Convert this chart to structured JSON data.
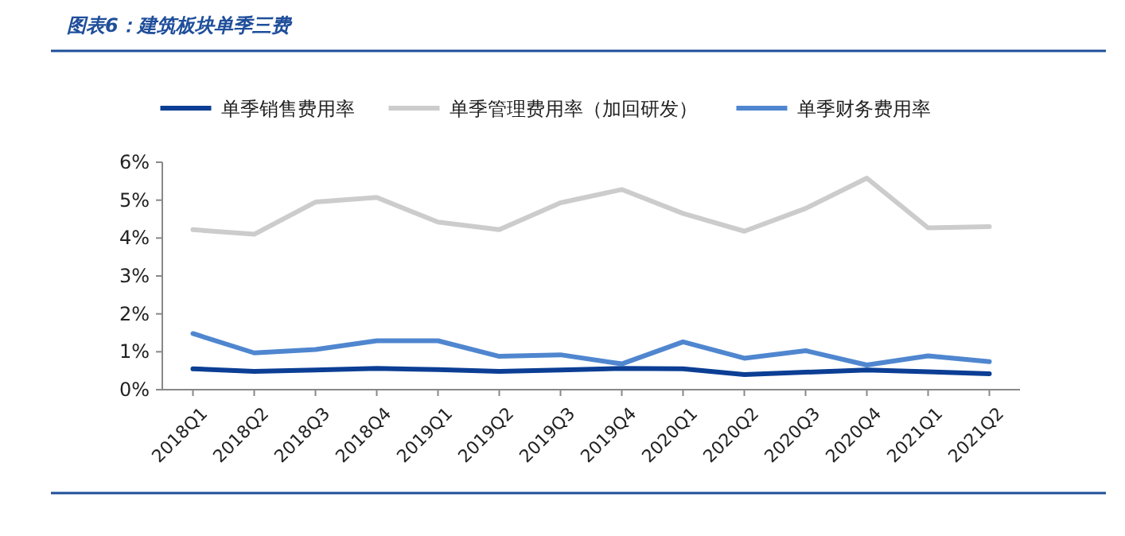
{
  "chart_data": {
    "type": "line",
    "title": "图表6：建筑板块单季三费",
    "categories": [
      "2018Q1",
      "2018Q2",
      "2018Q3",
      "2018Q4",
      "2019Q1",
      "2019Q2",
      "2019Q3",
      "2019Q4",
      "2020Q1",
      "2020Q2",
      "2020Q3",
      "2020Q4",
      "2021Q1",
      "2021Q2"
    ],
    "series": [
      {
        "name": "单季销售费用率",
        "color": "#0b3e94",
        "values": [
          0.55,
          0.48,
          0.52,
          0.56,
          0.53,
          0.48,
          0.52,
          0.56,
          0.55,
          0.4,
          0.46,
          0.52,
          0.47,
          0.42
        ]
      },
      {
        "name": "单季管理费用率（加回研发）",
        "color": "#cccccc",
        "values": [
          4.22,
          4.1,
          4.95,
          5.07,
          4.42,
          4.22,
          4.93,
          5.28,
          4.65,
          4.18,
          4.78,
          5.58,
          4.27,
          4.3
        ]
      },
      {
        "name": "单季财务费用率",
        "color": "#4f86cf",
        "values": [
          1.48,
          0.97,
          1.06,
          1.29,
          1.29,
          0.88,
          0.92,
          0.68,
          1.26,
          0.83,
          1.03,
          0.65,
          0.89,
          0.74
        ]
      }
    ],
    "ylim": [
      0,
      6
    ],
    "yticks": [
      {
        "value": 0,
        "label": "0%"
      },
      {
        "value": 1,
        "label": "1%"
      },
      {
        "value": 2,
        "label": "2%"
      },
      {
        "value": 3,
        "label": "3%"
      },
      {
        "value": 4,
        "label": "4%"
      },
      {
        "value": 5,
        "label": "5%"
      },
      {
        "value": 6,
        "label": "6%"
      }
    ],
    "legend": "top",
    "grid": false
  }
}
